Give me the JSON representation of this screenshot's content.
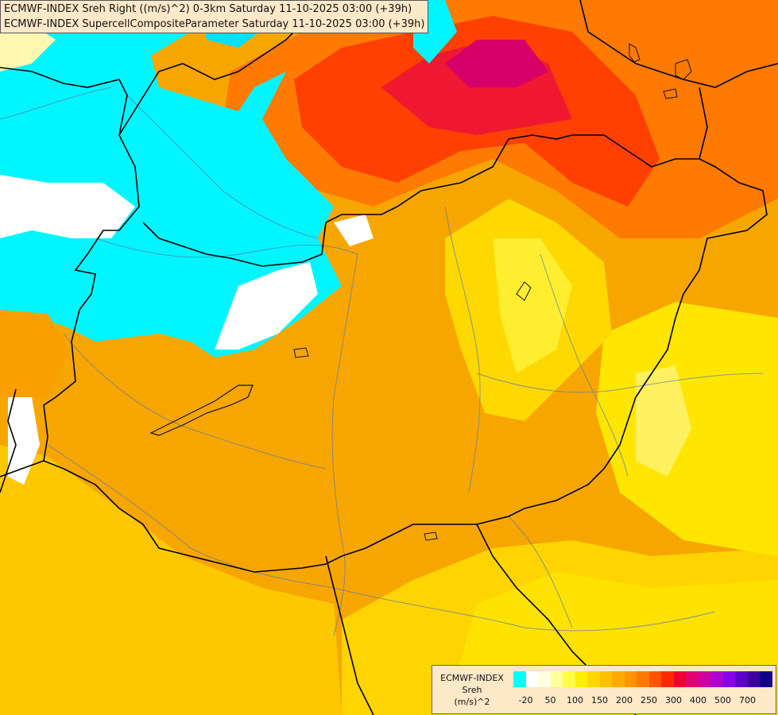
{
  "titles": {
    "line1": "ECMWF-INDEX Sreh Right ((m/s)^2) 0-3km Saturday 11-10-2025 03:00 (+39h)",
    "line2": "ECMWF-INDEX SupercellCompositeParameter Saturday 11-10-2025 03:00 (+39h)"
  },
  "legend": {
    "model": "ECMWF-INDEX",
    "variable": "Sreh",
    "unit": "(m/s)^2",
    "colors": [
      "#00ffff",
      "#ffffff",
      "#ffffe0",
      "#ffff99",
      "#ffff40",
      "#ffee00",
      "#ffd700",
      "#ffc000",
      "#ffaa00",
      "#ff9400",
      "#ff7a00",
      "#ff5500",
      "#ff2a00",
      "#f00030",
      "#e00070",
      "#d000a0",
      "#b000d0",
      "#8800ee",
      "#6000cc",
      "#3c00a0",
      "#10008a"
    ],
    "ticks": [
      {
        "label": "-20",
        "at": 1
      },
      {
        "label": "50",
        "at": 3
      },
      {
        "label": "100",
        "at": 5
      },
      {
        "label": "150",
        "at": 7
      },
      {
        "label": "200",
        "at": 9
      },
      {
        "label": "250",
        "at": 11
      },
      {
        "label": "300",
        "at": 13
      },
      {
        "label": "400",
        "at": 15
      },
      {
        "label": "500",
        "at": 17
      },
      {
        "label": "700",
        "at": 19
      }
    ]
  },
  "map_layers": [
    {
      "name": "base-field-orange",
      "color": "#f7a600"
    },
    {
      "name": "southern-yellow-band",
      "color": "#fdd000"
    },
    {
      "name": "eastern-yellow-zone",
      "color": "#fde800"
    },
    {
      "name": "northern-red-core",
      "color": "#ff3000"
    },
    {
      "name": "northern-magenta-max",
      "color": "#e0007a"
    },
    {
      "name": "northwest-cyan-zone",
      "color": "#00ffff"
    },
    {
      "name": "white-patches",
      "color": "#ffffff"
    }
  ]
}
